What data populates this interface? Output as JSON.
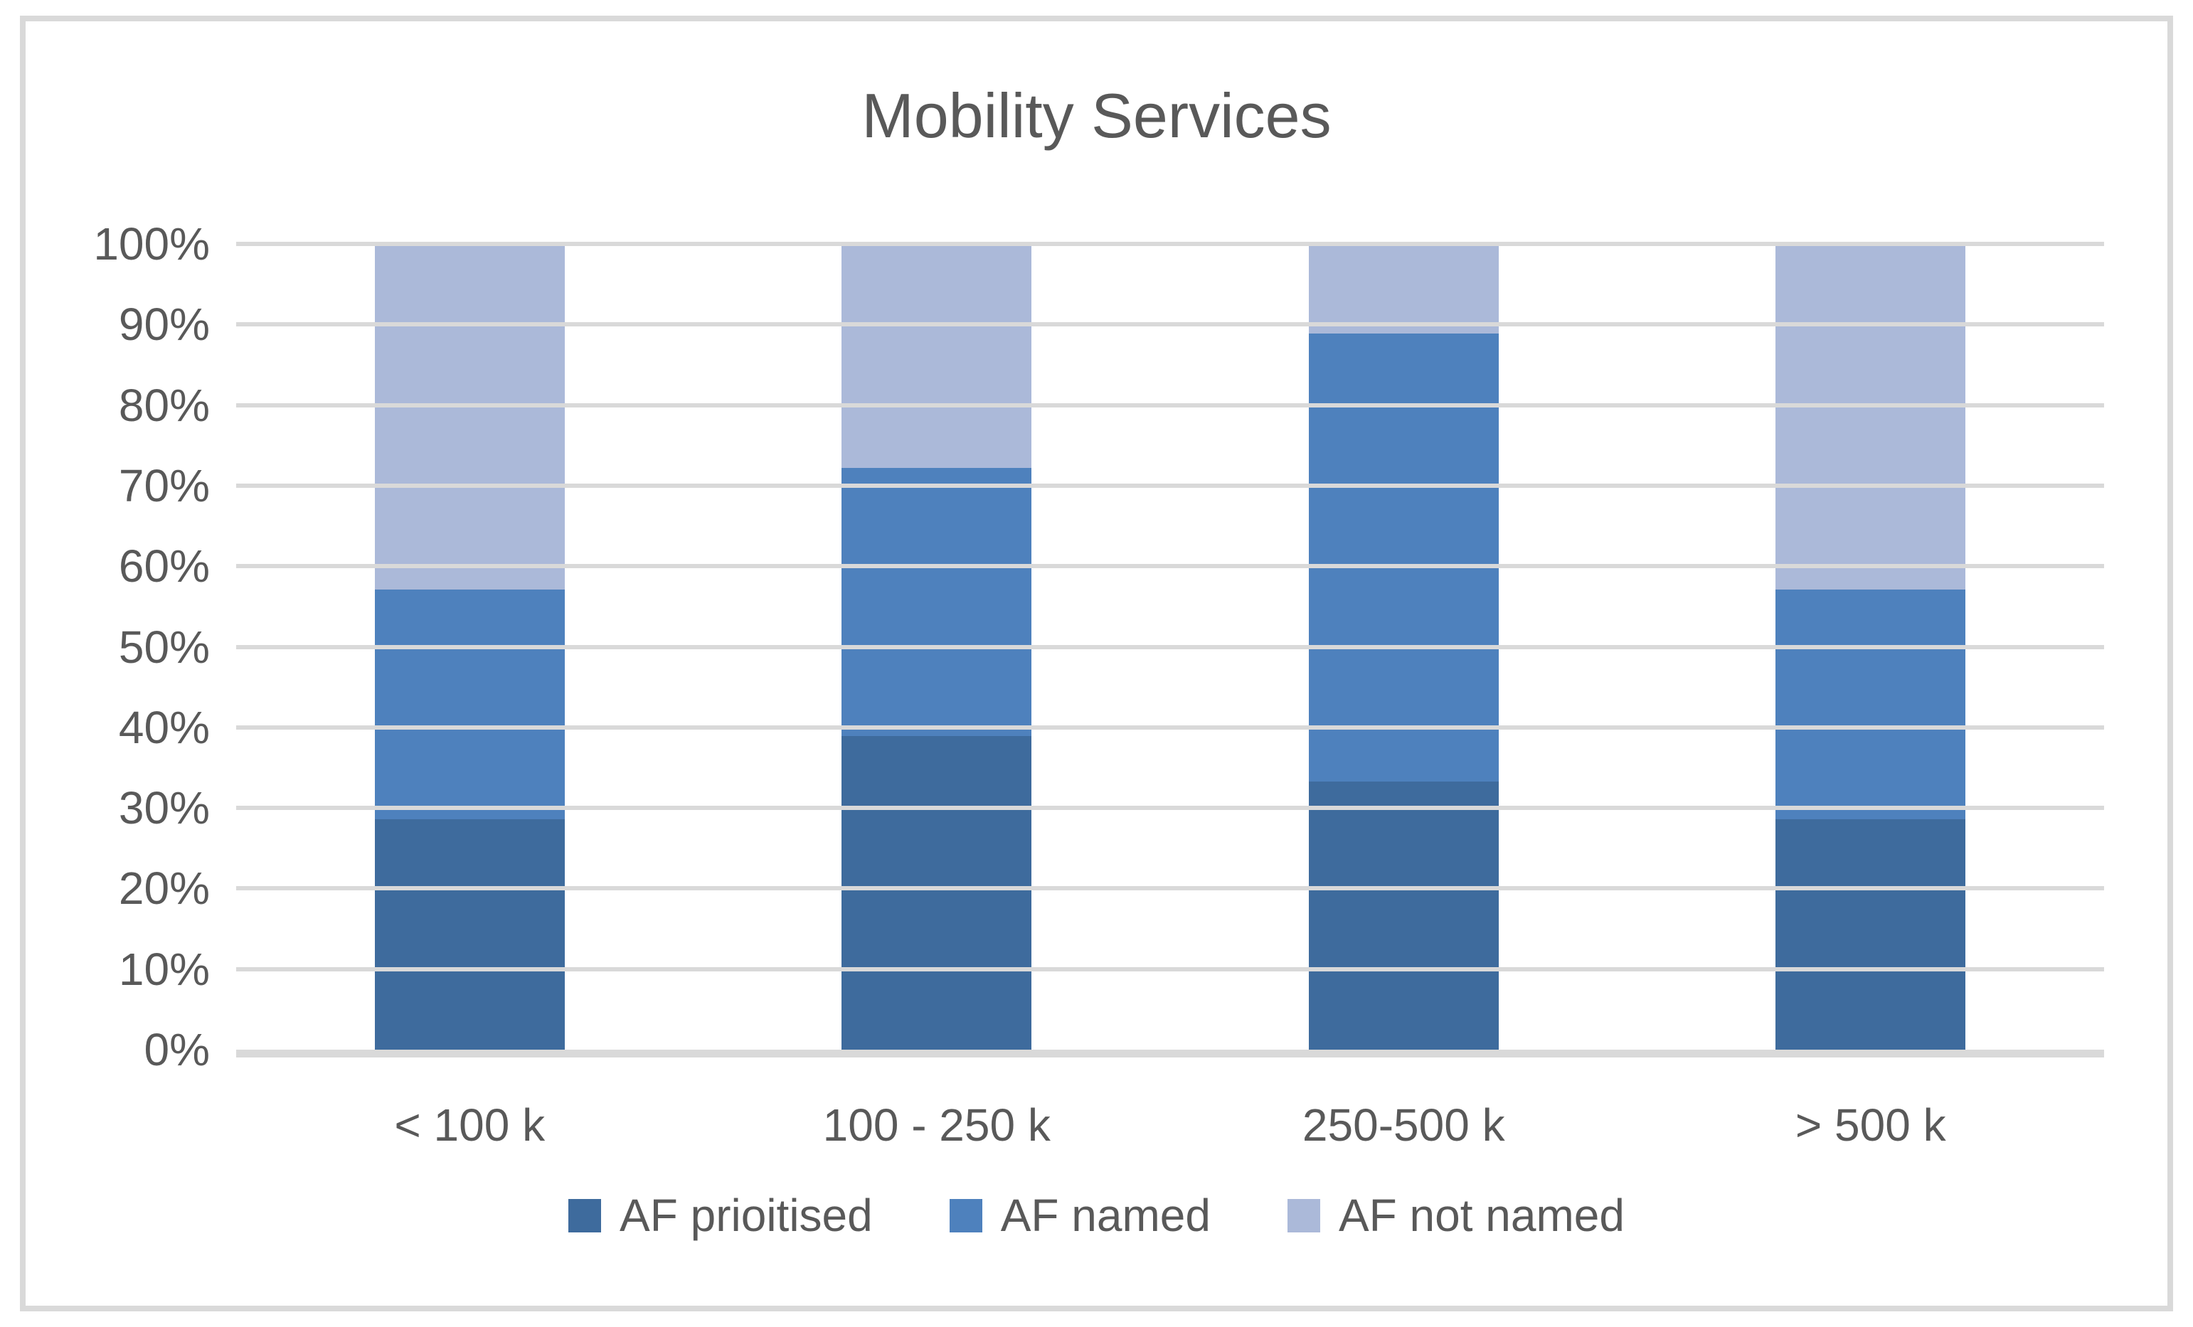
{
  "title": "Mobility Services",
  "colors": {
    "background": "#ffffff",
    "frame_border": "#d9d9d9",
    "gridline": "#d9d9d9",
    "axis_line": "#d9d9d9",
    "text": "#595959"
  },
  "chart_data": {
    "type": "bar",
    "subtype": "stacked-100",
    "title": "Mobility Services",
    "categories": [
      "< 100 k",
      "100 - 250 k",
      "250-500 k",
      "> 500 k"
    ],
    "series": [
      {
        "name": "AF prioitised",
        "color": "#3e6b9d",
        "values": [
          28.6,
          38.9,
          33.3,
          28.6
        ]
      },
      {
        "name": "AF named",
        "color": "#4e81bd",
        "values": [
          28.5,
          33.3,
          55.6,
          28.5
        ]
      },
      {
        "name": "AF not named",
        "color": "#abb9d9",
        "values": [
          42.9,
          27.8,
          11.1,
          42.9
        ]
      }
    ],
    "xlabel": "",
    "ylabel": "",
    "y_axis": {
      "min": 0,
      "max": 100,
      "step": 10,
      "tick_labels": [
        "100%",
        "90%",
        "80%",
        "70%",
        "60%",
        "50%",
        "40%",
        "30%",
        "20%",
        "10%",
        "0%"
      ]
    },
    "grid": true,
    "legend_position": "bottom"
  }
}
